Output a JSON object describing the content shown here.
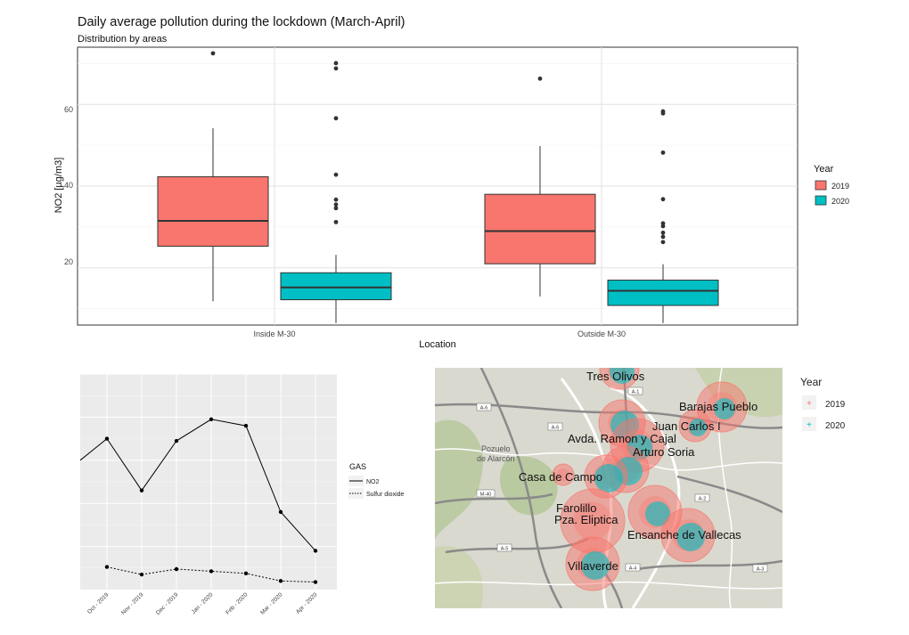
{
  "chart_data": [
    {
      "type": "box",
      "title": "Daily average pollution during the lockdown (March-April)",
      "subtitle": "Distribution by areas",
      "xlabel": "Location",
      "ylabel": "NO2 [µg/m3]",
      "ylim": [
        6,
        74
      ],
      "yticks": [
        "20",
        "40",
        "60"
      ],
      "categories": [
        "Inside M-30",
        "Outside M-30"
      ],
      "legend": {
        "title": "Year",
        "position": "right"
      },
      "grid": true,
      "series": [
        {
          "name": "2019",
          "color": "#F8766D",
          "boxes": [
            {
              "min": 11.8,
              "q1": 25.3,
              "median": 31.5,
              "q3": 42.3,
              "max": 54.2,
              "outliers": [
                72.5
              ]
            },
            {
              "min": 13.0,
              "q1": 21.0,
              "median": 29.0,
              "q3": 38.0,
              "max": 49.8,
              "outliers": [
                66.3
              ]
            }
          ]
        },
        {
          "name": "2020",
          "color": "#00BFC4",
          "boxes": [
            {
              "min": 6.5,
              "q1": 12.2,
              "median": 15.2,
              "q3": 18.8,
              "max": 23.2,
              "outliers": [
                31.2,
                34.6,
                35.5,
                36.7,
                42.8,
                56.6,
                68.8,
                70.1
              ]
            },
            {
              "min": 6.5,
              "q1": 10.8,
              "median": 14.4,
              "q3": 17.0,
              "max": 20.9,
              "outliers": [
                26.3,
                27.6,
                28.6,
                30.2,
                30.9,
                36.8,
                48.2,
                57.8,
                58.3
              ]
            }
          ]
        }
      ]
    },
    {
      "type": "line",
      "categories": [
        "Oct - 2019",
        "Nov - 2019",
        "Dec - 2019",
        "Jan - 2020",
        "Feb - 2020",
        "Mar - 2020",
        "Apr - 2020"
      ],
      "legend": {
        "title": "GAS",
        "position": "right"
      },
      "grid": true,
      "ylim": [
        0,
        100
      ],
      "series": [
        {
          "name": "NO2",
          "style": "solid",
          "start": 60,
          "values": [
            70,
            46,
            69,
            79,
            76,
            36,
            18
          ]
        },
        {
          "name": "Sulfur dioxide",
          "style": "dotted",
          "values": [
            10.5,
            7,
            9.5,
            8.5,
            7.5,
            4,
            3.5
          ]
        }
      ]
    }
  ],
  "map": {
    "legend": {
      "title": "Year",
      "items": [
        {
          "label": "2019",
          "color": "#F8766D"
        },
        {
          "label": "2020",
          "color": "#00BFC4"
        }
      ]
    },
    "places": [
      "Tres Olivos",
      "Barajas Pueblo",
      "Juan Carlos I",
      "Avda. Ramon y Cajal",
      "Arturo Soria",
      "Casa de Campo",
      "Farolillo",
      "Pza. Eliptica",
      "Ensanche de Vallecas",
      "Villaverde"
    ],
    "base_labels": [
      "Pozuelo",
      "de Alarcón"
    ],
    "road_labels": [
      "A-1",
      "A-6",
      "A-6",
      "M-40",
      "A-5",
      "A-4",
      "A-3",
      "A-2"
    ]
  }
}
